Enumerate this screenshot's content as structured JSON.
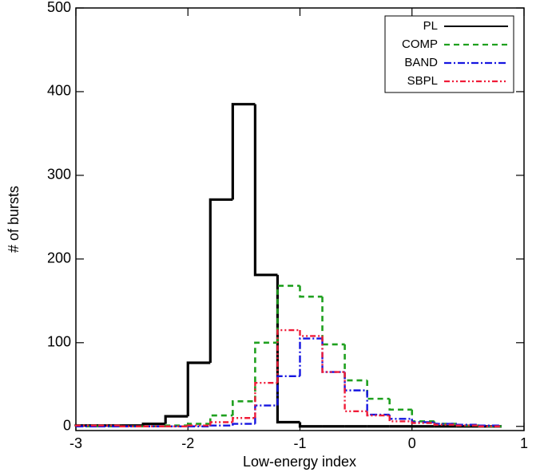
{
  "chart_data": {
    "type": "histogram",
    "x_label": "Low-energy index",
    "y_label": "# of bursts",
    "bins": [
      -3,
      -2.8,
      -2.6,
      -2.4,
      -2.2,
      -2.0,
      -1.8,
      -1.6,
      -1.4,
      -1.2,
      -1.0,
      -0.8,
      -0.6,
      -0.4,
      -0.2,
      0,
      0.2,
      0.4,
      0.6,
      0.8
    ],
    "series": [
      {
        "name": "PL",
        "color": "#000000",
        "values": [
          1,
          1,
          1,
          3,
          12,
          76,
          271,
          385,
          181,
          5,
          0,
          0,
          0,
          0,
          0,
          0,
          0,
          0,
          0
        ]
      },
      {
        "name": "COMP",
        "color": "#1fa01f",
        "values": [
          0,
          0,
          0,
          0,
          1,
          3,
          13,
          30,
          100,
          168,
          155,
          98,
          55,
          33,
          20,
          6,
          3,
          1,
          0
        ]
      },
      {
        "name": "BAND",
        "color": "#1515e0",
        "values": [
          0,
          0,
          0,
          0,
          0,
          0,
          1,
          3,
          25,
          60,
          105,
          65,
          43,
          14,
          9,
          5,
          3,
          2,
          1
        ]
      },
      {
        "name": "SBPL",
        "color": "#f01c38",
        "values": [
          1,
          1,
          0,
          0,
          0,
          1,
          5,
          10,
          52,
          115,
          108,
          65,
          18,
          13,
          6,
          4,
          2,
          1,
          0
        ]
      }
    ],
    "xlim": [
      -3,
      1
    ],
    "xticks": [
      -3,
      -2,
      -1,
      0,
      1
    ],
    "ylim": [
      -5,
      500
    ],
    "yticks": [
      0,
      100,
      200,
      300,
      400,
      500
    ],
    "legend": "upper right"
  }
}
